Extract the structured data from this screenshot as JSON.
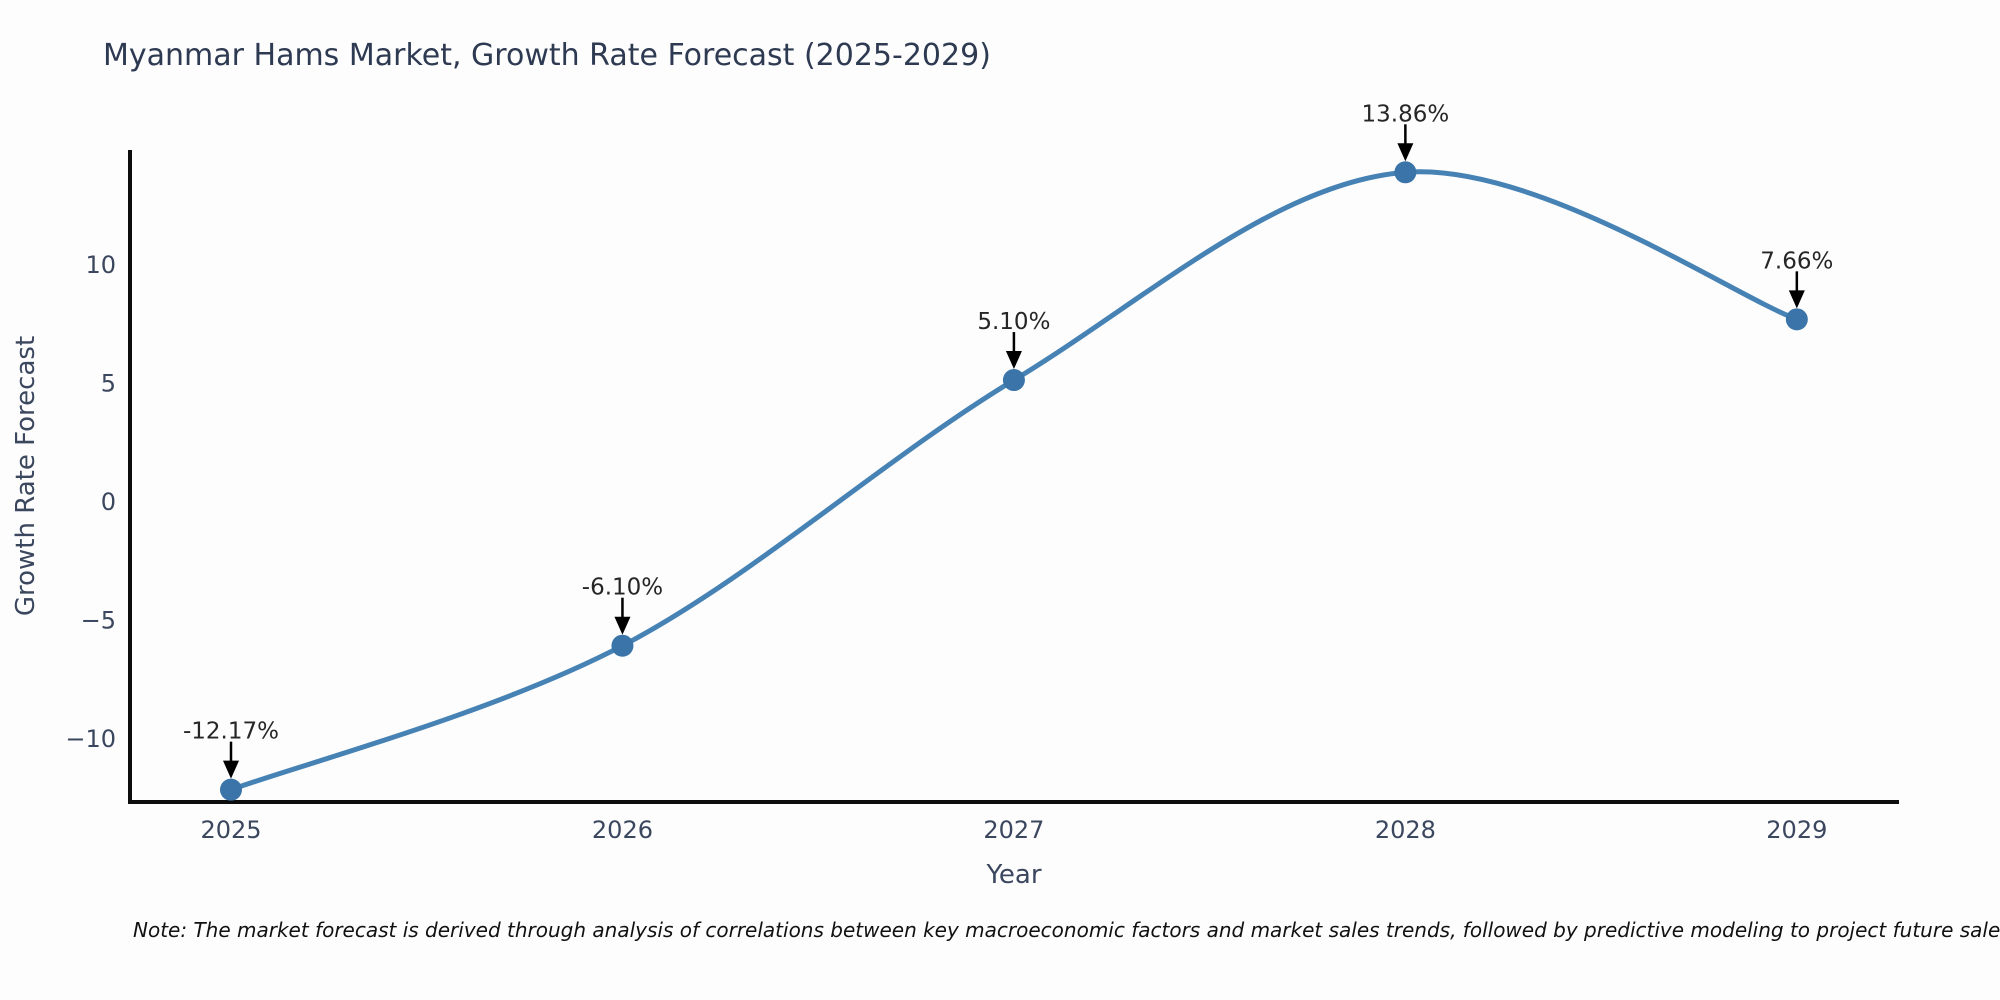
{
  "note": "Note: The market forecast is derived through analysis of correlations between key macroeconomic factors and market sales trends, followed by predictive modeling to project future sales",
  "chart_data": {
    "type": "line",
    "title": "Myanmar Hams Market, Growth Rate Forecast (2025-2029)",
    "xlabel": "Year",
    "ylabel": "Growth Rate Forecast",
    "x": [
      2025,
      2026,
      2027,
      2028,
      2029
    ],
    "series": [
      {
        "name": "Growth Rate Forecast",
        "values": [
          -12.17,
          -6.1,
          5.1,
          13.86,
          7.66
        ]
      }
    ],
    "point_labels": [
      "-12.17%",
      "-6.10%",
      "5.10%",
      "13.86%",
      "7.66%"
    ],
    "x_ticks": [
      "2025",
      "2026",
      "2027",
      "2028",
      "2029"
    ],
    "y_ticks": [
      -10,
      -5,
      0,
      5,
      10
    ],
    "y_tick_labels": [
      "−10",
      "−5",
      "0",
      "5",
      "10"
    ],
    "xlim": [
      2024.742,
      2029.261
    ],
    "ylim": [
      -12.69,
      14.8
    ],
    "grid": false,
    "legend": "none",
    "curve": "smooth-spline",
    "annotations_arrow": "black-down-arrow",
    "colors": {
      "line": "#4682b4",
      "marker": "#3a74a8",
      "axis": "#0d0d0d",
      "title_text": "#2e3a52",
      "tick_text": "#3b475e",
      "annotation_text": "#262626",
      "arrow": "#000000",
      "background": "#fdfdfd"
    }
  }
}
